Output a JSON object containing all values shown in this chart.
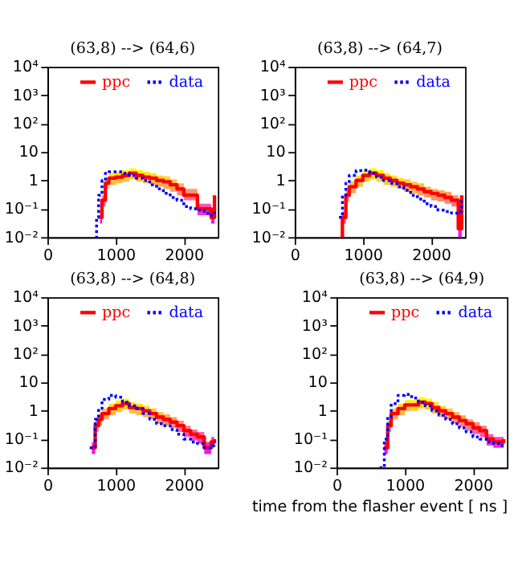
{
  "chart_data": [
    {
      "type": "step",
      "title": "(63,8) --> (64,6)",
      "log": "y",
      "legend": "top",
      "xlim": [
        0,
        2500
      ],
      "ylim": [
        0.01,
        10000
      ],
      "xticks": [
        0,
        1000,
        2000
      ],
      "yticks": [
        {
          "value": 0.01,
          "label": "10⁻²"
        },
        {
          "value": 0.1,
          "label": "10⁻¹"
        },
        1,
        10,
        {
          "value": 100,
          "label": "10²"
        },
        {
          "value": 1000,
          "label": "10³"
        },
        {
          "value": 10000,
          "label": "10⁴"
        }
      ],
      "series": [
        {
          "name": "ppc",
          "color": "#ff0000",
          "line_style": "solid",
          "x": [
            770,
            800,
            850,
            900,
            1000,
            1100,
            1200,
            1300,
            1400,
            1500,
            1600,
            1700,
            1800,
            1900,
            2000,
            2100,
            2200,
            2300,
            2400,
            2450
          ],
          "values": [
            0.05,
            0.2,
            0.8,
            1.2,
            1.3,
            1.5,
            1.8,
            1.5,
            1.3,
            1.2,
            1.0,
            0.9,
            0.7,
            0.5,
            0.3,
            0.3,
            0.1,
            0.1,
            0.05,
            0.3
          ],
          "upper": [
            0.08,
            0.3,
            1.2,
            1.8,
            2,
            2.3,
            2.7,
            2.3,
            2,
            1.8,
            1.5,
            1.4,
            1.1,
            0.8,
            0.5,
            0.5,
            0.15,
            0.15,
            0.08,
            0.5
          ],
          "lower": [
            0.03,
            0.12,
            0.5,
            0.7,
            0.8,
            0.9,
            1.1,
            0.9,
            0.8,
            0.7,
            0.6,
            0.5,
            0.4,
            0.3,
            0.2,
            0.2,
            0.06,
            0.06,
            0.03,
            0.2
          ]
        },
        {
          "name": "data",
          "color": "#0000ff",
          "line_style": "dotted",
          "x": [
            700,
            720,
            750,
            800,
            850,
            900,
            1000,
            1100,
            1200,
            1300,
            1400,
            1500,
            1600,
            1700,
            1800,
            1900,
            2000,
            2100,
            2200,
            2300,
            2400,
            2450
          ],
          "values": [
            0.01,
            0.05,
            0.3,
            1.0,
            1.8,
            2.0,
            2.0,
            1.8,
            1.5,
            1.2,
            1.0,
            0.7,
            0.5,
            0.35,
            0.25,
            0.2,
            0.12,
            0.1,
            0.09,
            0.07,
            0.06,
            0.08
          ]
        }
      ]
    },
    {
      "type": "step",
      "title": "(63,8) --> (64,7)",
      "log": "y",
      "legend": "top",
      "xlim": [
        0,
        2500
      ],
      "ylim": [
        0.01,
        10000
      ],
      "xticks": [
        0,
        1000,
        2000
      ],
      "yticks": [
        {
          "value": 0.01,
          "label": "10⁻²"
        },
        {
          "value": 0.1,
          "label": "10⁻¹"
        },
        1,
        10,
        {
          "value": 100,
          "label": "10²"
        },
        {
          "value": 1000,
          "label": "10³"
        },
        {
          "value": 10000,
          "label": "10⁴"
        }
      ],
      "series": [
        {
          "name": "ppc",
          "color": "#ff0000",
          "line_style": "solid",
          "x": [
            680,
            700,
            750,
            800,
            900,
            1000,
            1100,
            1200,
            1300,
            1400,
            1500,
            1600,
            1700,
            1800,
            1900,
            2000,
            2100,
            2200,
            2300,
            2400,
            2450
          ],
          "values": [
            0.01,
            0.05,
            0.3,
            0.6,
            1.0,
            1.5,
            1.8,
            1.5,
            1.2,
            1.0,
            0.8,
            0.7,
            0.6,
            0.5,
            0.4,
            0.35,
            0.3,
            0.25,
            0.2,
            0.02,
            0.3
          ],
          "upper": [
            0.02,
            0.08,
            0.45,
            0.9,
            1.5,
            2.3,
            2.7,
            2.3,
            1.8,
            1.5,
            1.2,
            1.1,
            0.9,
            0.8,
            0.6,
            0.5,
            0.45,
            0.4,
            0.3,
            0.03,
            0.45
          ],
          "lower": [
            0.01,
            0.03,
            0.18,
            0.35,
            0.6,
            0.9,
            1.1,
            0.9,
            0.7,
            0.6,
            0.5,
            0.4,
            0.35,
            0.3,
            0.25,
            0.2,
            0.18,
            0.15,
            0.12,
            0.01,
            0.18
          ]
        },
        {
          "name": "data",
          "color": "#0000ff",
          "line_style": "dotted",
          "x": [
            650,
            700,
            750,
            800,
            900,
            1000,
            1100,
            1200,
            1300,
            1400,
            1500,
            1600,
            1700,
            1800,
            1900,
            2000,
            2100,
            2200,
            2300,
            2400,
            2450
          ],
          "values": [
            0.05,
            0.3,
            0.8,
            1.5,
            2.2,
            2.3,
            1.8,
            1.3,
            1.0,
            0.8,
            0.6,
            0.45,
            0.3,
            0.22,
            0.15,
            0.12,
            0.09,
            0.08,
            0.07,
            0.08,
            0.2
          ]
        }
      ]
    },
    {
      "type": "step",
      "title": "(63,8) --> (64,8)",
      "log": "y",
      "legend": "top",
      "xlim": [
        0,
        2500
      ],
      "ylim": [
        0.01,
        10000
      ],
      "xticks": [
        0,
        1000,
        2000
      ],
      "yticks": [
        {
          "value": 0.01,
          "label": "10⁻²"
        },
        {
          "value": 0.1,
          "label": "10⁻¹"
        },
        1,
        10,
        {
          "value": 100,
          "label": "10²"
        },
        {
          "value": 1000,
          "label": "10³"
        },
        {
          "value": 10000,
          "label": "10⁴"
        }
      ],
      "series": [
        {
          "name": "ppc",
          "color": "#ff0000",
          "line_style": "solid",
          "x": [
            650,
            700,
            750,
            800,
            900,
            1000,
            1100,
            1200,
            1300,
            1400,
            1500,
            1600,
            1700,
            1800,
            1900,
            2000,
            2100,
            2200,
            2300,
            2400,
            2450
          ],
          "values": [
            0.05,
            0.3,
            0.5,
            0.8,
            1.2,
            1.5,
            1.8,
            1.3,
            1.2,
            1.0,
            0.8,
            0.6,
            0.5,
            0.4,
            0.3,
            0.2,
            0.15,
            0.12,
            0.05,
            0.08,
            0.1
          ],
          "upper": [
            0.08,
            0.45,
            0.75,
            1.2,
            1.8,
            2.3,
            2.7,
            2,
            1.8,
            1.5,
            1.2,
            0.9,
            0.75,
            0.6,
            0.45,
            0.3,
            0.22,
            0.18,
            0.08,
            0.12,
            0.15
          ],
          "lower": [
            0.03,
            0.18,
            0.3,
            0.5,
            0.7,
            0.9,
            1.1,
            0.8,
            0.7,
            0.6,
            0.5,
            0.35,
            0.3,
            0.25,
            0.18,
            0.12,
            0.09,
            0.07,
            0.03,
            0.05,
            0.06
          ]
        },
        {
          "name": "data",
          "color": "#0000ff",
          "line_style": "dotted",
          "x": [
            620,
            700,
            750,
            800,
            900,
            1000,
            1100,
            1200,
            1300,
            1400,
            1500,
            1600,
            1700,
            1800,
            1900,
            2000,
            2100,
            2200,
            2300,
            2400,
            2450
          ],
          "values": [
            0.05,
            0.5,
            1.2,
            2.5,
            3.5,
            3.0,
            2.0,
            1.5,
            1.2,
            0.8,
            0.5,
            0.35,
            0.3,
            0.22,
            0.15,
            0.1,
            0.08,
            0.07,
            0.05,
            0.06,
            0.08
          ]
        }
      ]
    },
    {
      "type": "step",
      "title": "(63,8) --> (64,9)",
      "xlabel": "time from the flasher event [ ns ]",
      "log": "y",
      "legend": "top",
      "xlim": [
        0,
        2500
      ],
      "ylim": [
        0.01,
        10000
      ],
      "xticks": [
        0,
        1000,
        2000
      ],
      "yticks": [
        {
          "value": 0.01,
          "label": "10⁻²"
        },
        {
          "value": 0.1,
          "label": "10⁻¹"
        },
        1,
        10,
        {
          "value": 100,
          "label": "10²"
        },
        {
          "value": 1000,
          "label": "10³"
        },
        {
          "value": 10000,
          "label": "10⁴"
        }
      ],
      "series": [
        {
          "name": "ppc",
          "color": "#ff0000",
          "line_style": "solid",
          "x": [
            700,
            750,
            800,
            900,
            1000,
            1100,
            1200,
            1300,
            1400,
            1500,
            1600,
            1700,
            1800,
            1900,
            2000,
            2100,
            2200,
            2300,
            2400,
            2450
          ],
          "values": [
            0.05,
            0.3,
            0.8,
            1.2,
            1.6,
            1.6,
            2.0,
            1.8,
            1.3,
            1.0,
            0.8,
            0.6,
            0.45,
            0.35,
            0.25,
            0.2,
            0.1,
            0.08,
            0.08,
            0.1
          ],
          "upper": [
            0.08,
            0.45,
            1.2,
            1.8,
            2.4,
            2.4,
            3,
            2.7,
            2,
            1.5,
            1.2,
            0.9,
            0.7,
            0.5,
            0.4,
            0.3,
            0.15,
            0.12,
            0.12,
            0.15
          ],
          "lower": [
            0.03,
            0.18,
            0.5,
            0.7,
            1,
            1,
            1.2,
            1.1,
            0.8,
            0.6,
            0.5,
            0.35,
            0.27,
            0.2,
            0.15,
            0.12,
            0.06,
            0.05,
            0.05,
            0.06
          ]
        },
        {
          "name": "data",
          "color": "#0000ff",
          "line_style": "dotted",
          "x": [
            630,
            700,
            750,
            800,
            900,
            1000,
            1100,
            1200,
            1300,
            1400,
            1500,
            1600,
            1700,
            1800,
            1900,
            2000,
            2100,
            2200,
            2300,
            2400,
            2450
          ],
          "values": [
            0.01,
            0.1,
            0.6,
            1.8,
            3.5,
            3.8,
            2.8,
            2.0,
            1.5,
            1.0,
            0.7,
            0.5,
            0.35,
            0.25,
            0.18,
            0.12,
            0.1,
            0.08,
            0.07,
            0.06,
            0.06
          ]
        }
      ]
    }
  ]
}
